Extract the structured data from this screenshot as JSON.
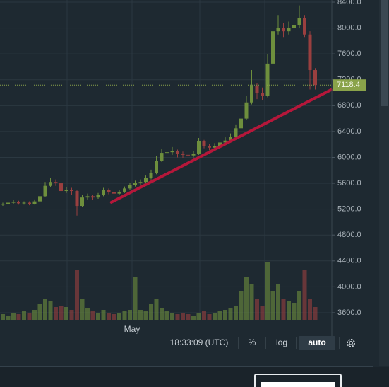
{
  "chart_data": {
    "type": "candlestick",
    "open": [
      5270,
      5280,
      5300,
      5310,
      5290,
      5300,
      5280,
      5320,
      5400,
      5560,
      5620,
      5600,
      5480,
      5500,
      5480,
      5250,
      5380,
      5400,
      5380,
      5420,
      5500,
      5460,
      5440,
      5470,
      5520,
      5570,
      5600,
      5620,
      5680,
      5760,
      5950,
      6070,
      6080,
      6100,
      6050,
      6040,
      6030,
      6060,
      6250,
      6180,
      6150,
      6180,
      6230,
      6260,
      6320,
      6450,
      6600,
      6850,
      7100,
      7000,
      6950,
      7450,
      7950,
      8000,
      7950,
      8000,
      8050,
      8150,
      7900,
      7350
    ],
    "high": [
      5300,
      5320,
      5340,
      5330,
      5320,
      5320,
      5350,
      5430,
      5620,
      5680,
      5660,
      5610,
      5540,
      5530,
      5490,
      5420,
      5440,
      5420,
      5450,
      5530,
      5520,
      5490,
      5500,
      5550,
      5600,
      5640,
      5660,
      5720,
      5810,
      6020,
      6130,
      6140,
      6160,
      6120,
      6090,
      6080,
      6100,
      6300,
      6270,
      6210,
      6220,
      6270,
      6310,
      6370,
      6510,
      6680,
      6950,
      7350,
      7150,
      7080,
      7600,
      8050,
      8200,
      8080,
      8100,
      8150,
      8350,
      8200,
      7950,
      7380
    ],
    "low": [
      5250,
      5270,
      5280,
      5270,
      5270,
      5260,
      5270,
      5310,
      5390,
      5540,
      5560,
      5440,
      5450,
      5420,
      5100,
      5230,
      5350,
      5340,
      5360,
      5400,
      5430,
      5410,
      5420,
      5450,
      5500,
      5550,
      5580,
      5600,
      5660,
      5740,
      5930,
      6020,
      6040,
      6000,
      5990,
      5980,
      6000,
      6040,
      6140,
      6110,
      6120,
      6150,
      6200,
      6230,
      6300,
      6420,
      6580,
      6820,
      6900,
      6880,
      6930,
      7400,
      7900,
      7850,
      7900,
      7950,
      8000,
      7850,
      7050,
      7050
    ],
    "close": [
      5280,
      5300,
      5310,
      5290,
      5300,
      5280,
      5320,
      5400,
      5560,
      5620,
      5600,
      5480,
      5500,
      5480,
      5250,
      5380,
      5400,
      5380,
      5420,
      5500,
      5460,
      5440,
      5470,
      5520,
      5570,
      5600,
      5620,
      5680,
      5760,
      5950,
      6070,
      6080,
      6100,
      6050,
      6040,
      6030,
      6060,
      6250,
      6180,
      6150,
      6180,
      6230,
      6260,
      6320,
      6450,
      6600,
      6850,
      7100,
      7000,
      6950,
      7450,
      7950,
      8000,
      7950,
      8000,
      8050,
      8150,
      7900,
      7350,
      7118.4
    ],
    "volume": [
      8,
      6,
      10,
      8,
      12,
      10,
      14,
      22,
      30,
      26,
      18,
      20,
      18,
      14,
      70,
      30,
      16,
      12,
      10,
      14,
      10,
      8,
      10,
      12,
      14,
      60,
      14,
      12,
      22,
      30,
      16,
      12,
      10,
      8,
      10,
      8,
      6,
      10,
      12,
      8,
      10,
      12,
      14,
      16,
      20,
      40,
      60,
      50,
      30,
      20,
      82,
      40,
      50,
      30,
      26,
      24,
      40,
      70,
      30,
      18
    ],
    "up_color": "#6e8f3d",
    "down_color": "#9a3f3f",
    "ylim": [
      3490,
      8433
    ],
    "yticks": [
      {
        "value": 3600,
        "label": "3600.0"
      },
      {
        "value": 4000,
        "label": "4000.0"
      },
      {
        "value": 4400,
        "label": "4400.0"
      },
      {
        "value": 4800,
        "label": "4800.0"
      },
      {
        "value": 5200,
        "label": "5200.0"
      },
      {
        "value": 5600,
        "label": "5600.0"
      },
      {
        "value": 6000,
        "label": "6000.0"
      },
      {
        "value": 6400,
        "label": "6400.0"
      },
      {
        "value": 6800,
        "label": "6800.0"
      },
      {
        "value": 7200,
        "label": "7200.0"
      },
      {
        "value": 7600,
        "label": "7600.0"
      },
      {
        "value": 8000,
        "label": "8000.0"
      },
      {
        "value": 8400,
        "label": "8400.0"
      }
    ],
    "xticks": [
      {
        "value": 24.4,
        "label": "May"
      }
    ],
    "grid": true,
    "trendline": {
      "x": [
        20.5,
        62
      ],
      "y": [
        5307,
        7045
      ],
      "color": "#b5173a"
    }
  },
  "toolbar": {
    "time": "18:33:09 (UTC)",
    "percent": "%",
    "log": "log",
    "auto": "auto"
  }
}
